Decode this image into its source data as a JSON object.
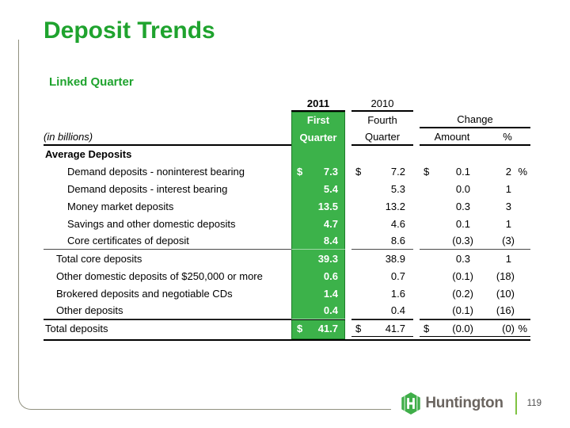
{
  "slide": {
    "title": "Deposit Trends",
    "subtitle": "Linked Quarter",
    "accent_green": "#1fa32e",
    "table_green": "#3cb24a"
  },
  "table": {
    "unit_label": "(in billions)",
    "year_2011": "2011",
    "year_2010": "2010",
    "col_first_line1": "First",
    "col_first_line2": "Quarter",
    "col_fourth_line1": "Fourth",
    "col_fourth_line2": "Quarter",
    "col_change": "Change",
    "col_amount": "Amount",
    "col_percent": "%",
    "section_header": "Average Deposits",
    "rows": [
      {
        "label": "Demand deposits - noninterest bearing",
        "indent": 2,
        "q1_cur": "$",
        "q1": "7.3",
        "q4_cur": "$",
        "q4": "7.2",
        "amt_cur": "$",
        "amount": "0.1",
        "pct": "2",
        "pct_unit": "%"
      },
      {
        "label": "Demand deposits - interest bearing",
        "indent": 2,
        "q1_cur": "",
        "q1": "5.4",
        "q4_cur": "",
        "q4": "5.3",
        "amt_cur": "",
        "amount": "0.0",
        "pct": "1",
        "pct_unit": ""
      },
      {
        "label": "Money market deposits",
        "indent": 2,
        "q1_cur": "",
        "q1": "13.5",
        "q4_cur": "",
        "q4": "13.2",
        "amt_cur": "",
        "amount": "0.3",
        "pct": "3",
        "pct_unit": ""
      },
      {
        "label": "Savings and other domestic deposits",
        "indent": 2,
        "q1_cur": "",
        "q1": "4.7",
        "q4_cur": "",
        "q4": "4.6",
        "amt_cur": "",
        "amount": "0.1",
        "pct": "1",
        "pct_unit": ""
      },
      {
        "label": "Core certificates of deposit",
        "indent": 2,
        "q1_cur": "",
        "q1": "8.4",
        "q4_cur": "",
        "q4": "8.6",
        "amt_cur": "",
        "amount": "(0.3)",
        "pct": "(3)",
        "pct_unit": "",
        "separator_below": true
      },
      {
        "label": "Total core deposits",
        "indent": 1,
        "q1_cur": "",
        "q1": "39.3",
        "q4_cur": "",
        "q4": "38.9",
        "amt_cur": "",
        "amount": "0.3",
        "pct": "1",
        "pct_unit": ""
      },
      {
        "label": "Other domestic deposits of $250,000 or more",
        "indent": 1,
        "q1_cur": "",
        "q1": "0.6",
        "q4_cur": "",
        "q4": "0.7",
        "amt_cur": "",
        "amount": "(0.1)",
        "pct": "(18)",
        "pct_unit": ""
      },
      {
        "label": "Brokered deposits and negotiable CDs",
        "indent": 1,
        "q1_cur": "",
        "q1": "1.4",
        "q4_cur": "",
        "q4": "1.6",
        "amt_cur": "",
        "amount": "(0.2)",
        "pct": "(10)",
        "pct_unit": ""
      },
      {
        "label": "Other deposits",
        "indent": 1,
        "q1_cur": "",
        "q1": "0.4",
        "q4_cur": "",
        "q4": "0.4",
        "amt_cur": "",
        "amount": "(0.1)",
        "pct": "(16)",
        "pct_unit": "",
        "separator_below": true
      },
      {
        "label": "Total deposits",
        "indent": 0,
        "q1_cur": "$",
        "q1": "41.7",
        "q4_cur": "$",
        "q4": "41.7",
        "amt_cur": "$",
        "amount": "(0.0)",
        "pct": "(0)",
        "pct_unit": "%",
        "is_total": true
      }
    ]
  },
  "footer": {
    "brand": "Huntington",
    "page_number": "119",
    "divider_green": "#7fc242"
  }
}
